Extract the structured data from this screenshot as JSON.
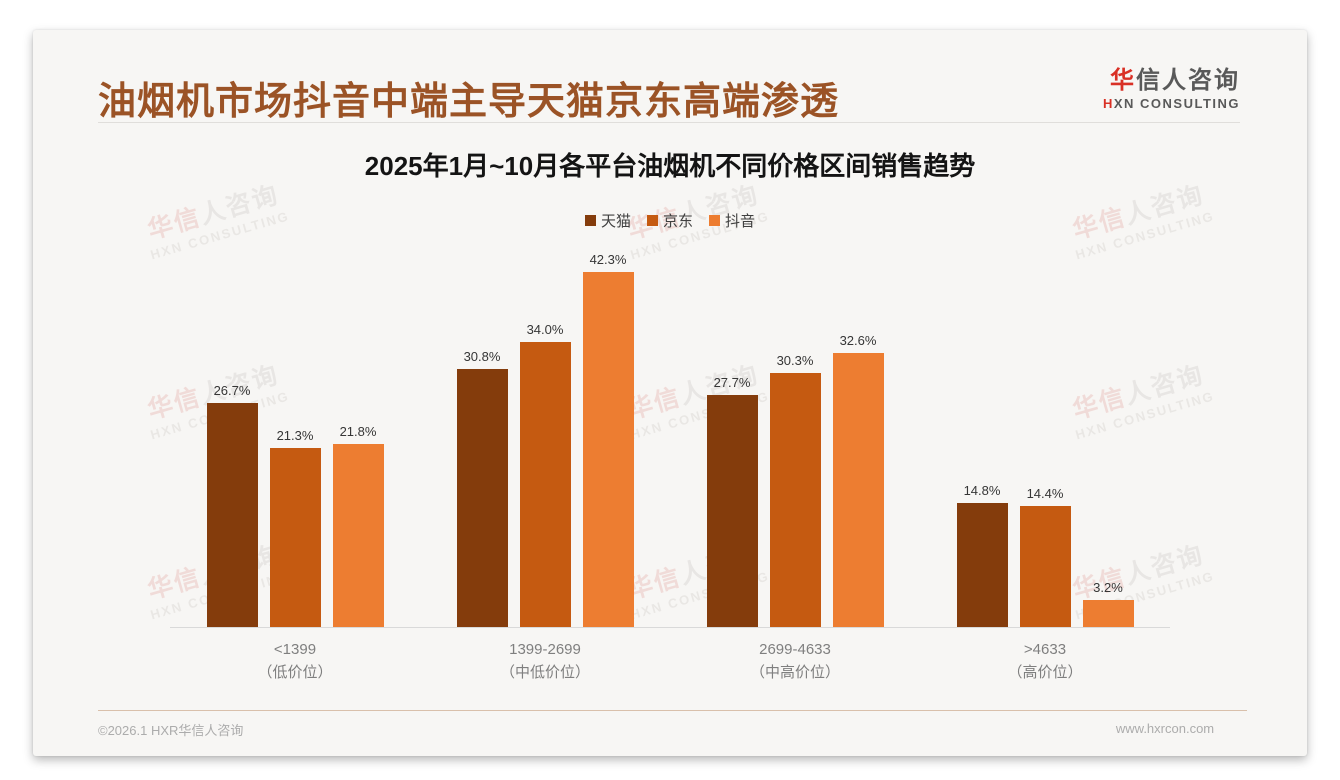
{
  "page": {
    "heading": "油烟机市场抖音中端主导天猫京东高端渗透",
    "logo": {
      "cn_first": "华",
      "cn_rest": "信人咨询",
      "en_first": "H",
      "en_rest": "XN CONSULTING"
    },
    "watermark": {
      "line1_red": "华信",
      "line1_gray": "人咨询",
      "line2": "HXN CONSULTING"
    },
    "footer": {
      "left": "©2026.1 HXR华信人咨询",
      "right": "www.hxrcon.com"
    }
  },
  "chart_data": {
    "type": "bar",
    "title": "2025年1月~10月各平台油烟机不同价格区间销售趋势",
    "categories": [
      {
        "range": "<1399",
        "tier": "（低价位）"
      },
      {
        "range": "1399-2699",
        "tier": "（中低价位）"
      },
      {
        "range": "2699-4633",
        "tier": "（中高价位）"
      },
      {
        "range": ">4633",
        "tier": "（高价位）"
      }
    ],
    "series": [
      {
        "name": "天猫",
        "color": "#843C0C",
        "values": [
          26.7,
          30.8,
          27.7,
          14.8
        ]
      },
      {
        "name": "京东",
        "color": "#C55A11",
        "values": [
          21.3,
          34.0,
          30.3,
          14.4
        ]
      },
      {
        "name": "抖音",
        "color": "#ED7D31",
        "values": [
          21.8,
          42.3,
          32.6,
          3.2
        ]
      }
    ],
    "value_suffix": "%",
    "xlabel": "",
    "ylabel": "",
    "ylim": [
      0,
      45
    ],
    "grid": false,
    "legend_position": "top"
  }
}
